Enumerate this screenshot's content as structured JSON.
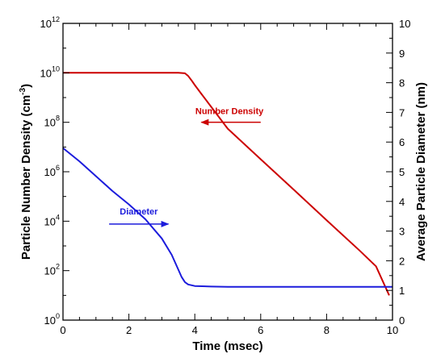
{
  "chart_data": {
    "type": "line",
    "xlabel": "Time (msec)",
    "ylabel_left_parts": [
      "Particle Number Density (cm",
      "-3",
      ")"
    ],
    "ylabel_right": "Average Particle Diameter (nm)",
    "xlim": [
      0,
      10
    ],
    "ylim_left": [
      1,
      1000000000000
    ],
    "ylim_left_scale": "log",
    "ylim_right": [
      0,
      10
    ],
    "xticks": [
      0,
      2,
      4,
      6,
      8,
      10
    ],
    "xtick_labels": [
      "0",
      "2",
      "4",
      "6",
      "8",
      "10"
    ],
    "yticks_left": [
      {
        "base": "10",
        "exp": "0",
        "value": 1
      },
      {
        "base": "10",
        "exp": "2",
        "value": 100
      },
      {
        "base": "10",
        "exp": "4",
        "value": 10000
      },
      {
        "base": "10",
        "exp": "6",
        "value": 1000000
      },
      {
        "base": "10",
        "exp": "8",
        "value": 100000000
      },
      {
        "base": "10",
        "exp": "10",
        "value": 10000000000
      },
      {
        "base": "10",
        "exp": "12",
        "value": 1000000000000
      }
    ],
    "yticks_right": [
      0,
      1,
      2,
      3,
      4,
      5,
      6,
      7,
      8,
      9,
      10
    ],
    "ytick_labels_right": [
      "0",
      "1",
      "2",
      "3",
      "4",
      "5",
      "6",
      "7",
      "8",
      "9",
      "10"
    ],
    "grid": false,
    "series": [
      {
        "name": "Number Density",
        "axis": "left",
        "color": "#cc0000",
        "x": [
          0,
          1,
          2,
          3,
          3.5,
          3.7,
          3.8,
          3.9,
          4.0,
          4.2,
          5,
          6,
          7,
          8,
          9,
          9.5,
          9.9
        ],
        "y": [
          10000000000,
          10000000000,
          10000000000,
          10000000000,
          10000000000,
          9600000000,
          7500000000,
          5000000000,
          3200000000,
          1400000000,
          55000000,
          3200000,
          190000,
          11000,
          650,
          150,
          10
        ]
      },
      {
        "name": "Diameter",
        "axis": "right",
        "color": "#1c1cdc",
        "x": [
          0,
          0.5,
          1,
          1.5,
          2,
          2.5,
          3,
          3.3,
          3.5,
          3.6,
          3.7,
          3.8,
          4.0,
          4.5,
          5,
          6,
          7,
          8,
          9,
          10
        ],
        "y": [
          5.8,
          5.35,
          4.85,
          4.35,
          3.9,
          3.4,
          2.75,
          2.2,
          1.7,
          1.45,
          1.28,
          1.2,
          1.15,
          1.13,
          1.12,
          1.12,
          1.12,
          1.12,
          1.12,
          1.12
        ]
      }
    ],
    "annotations": [
      {
        "text": "Number Density",
        "color": "#cc0000",
        "arrow": "left",
        "x": 5.1,
        "y_left": 100000000
      },
      {
        "text": "Diameter",
        "color": "#1c1cdc",
        "arrow": "right",
        "x": 2.3,
        "y_right": 3.4
      }
    ]
  }
}
